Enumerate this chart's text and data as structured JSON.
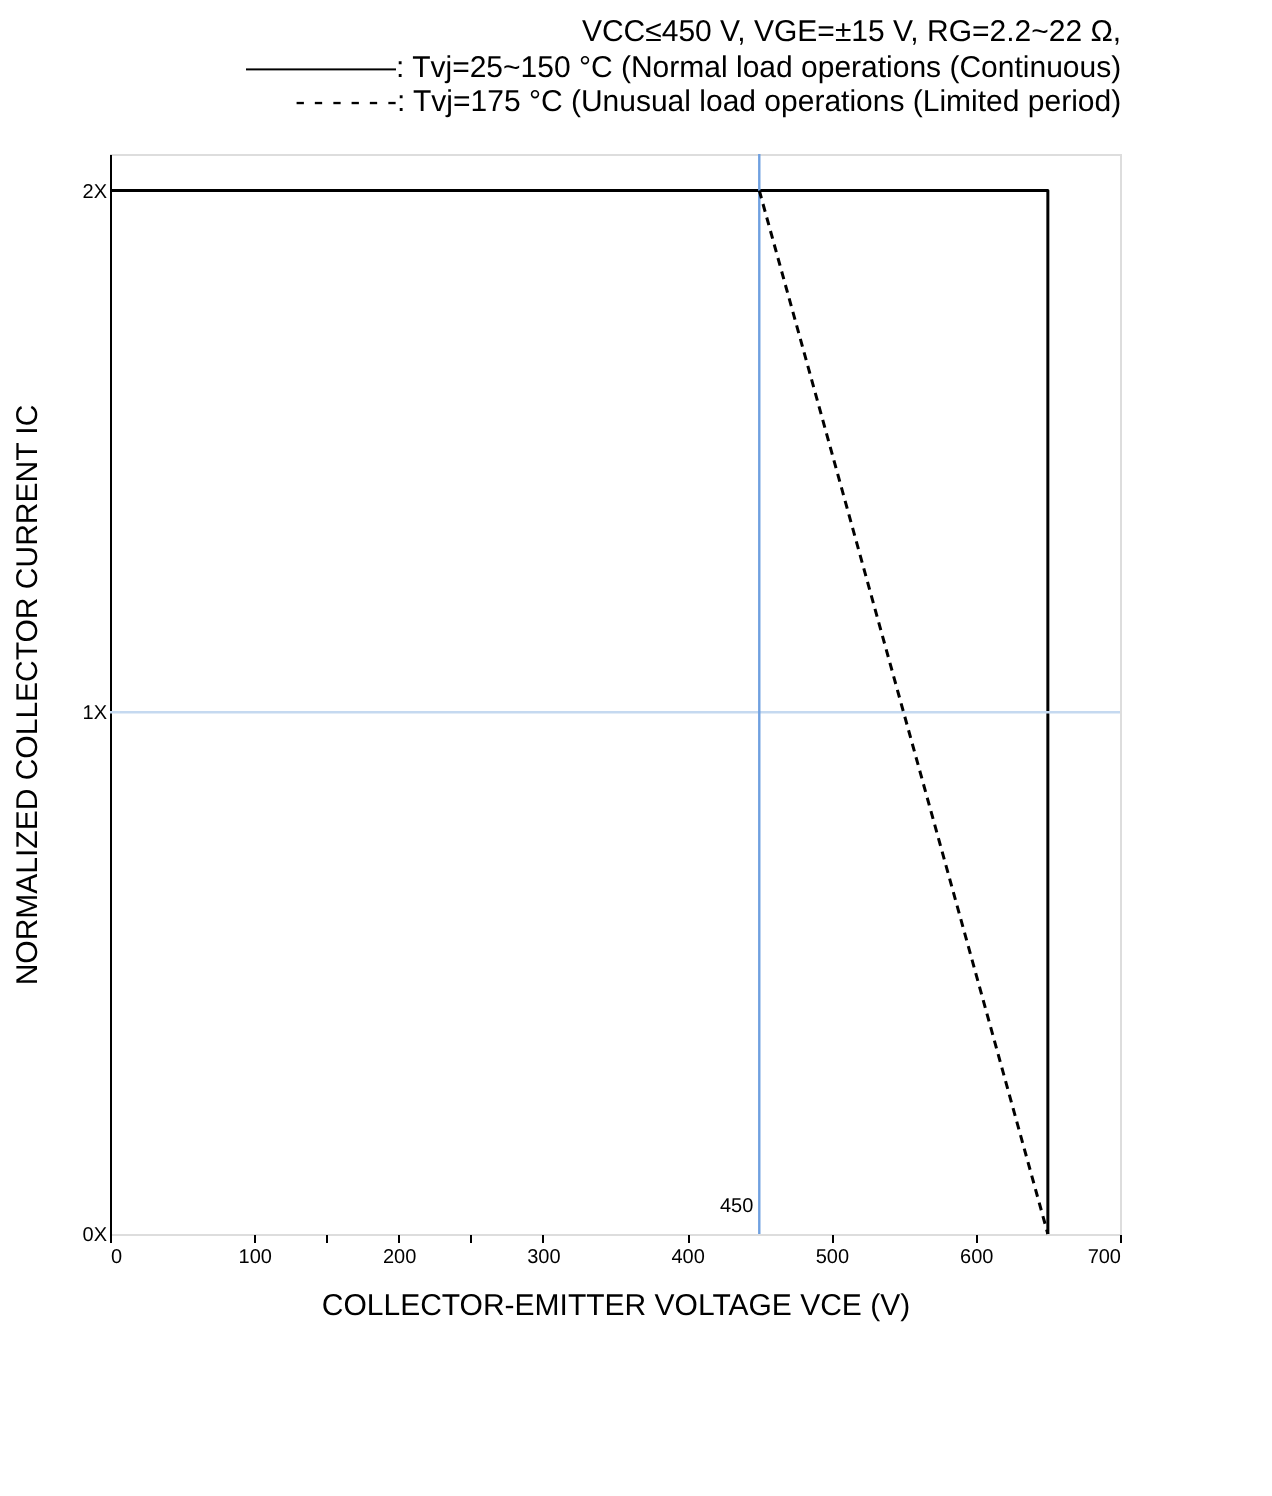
{
  "chart_data": {
    "type": "line",
    "title": "VCC≤450 V, VGE=±15 V, RG=2.2~22 Ω,",
    "subtitle": [
      "―――――: Tvj=25~150 °C (Normal load operations (Continuous)",
      "- - - - - -: Tvj=175 °C (Unusual load operations (Limited period)"
    ],
    "xlabel": "COLLECTOR-EMITTER VOLTAGE    VCE    (V)",
    "ylabel": "NORMALIZED COLLECTOR CURRENT    IC",
    "series": [
      {
        "color": "#000000",
        "line_style": "solid",
        "x": [
          0,
          650,
          650
        ],
        "values": [
          2,
          2,
          0
        ]
      },
      {
        "color": "#000000",
        "line_style": "dashed",
        "x": [
          450,
          650
        ],
        "values": [
          2,
          0
        ]
      }
    ],
    "xlim": [
      0,
      700
    ],
    "xticks": [
      0,
      100,
      {
        "value": 150,
        "label": null
      },
      200,
      {
        "value": 250,
        "label": null
      },
      300,
      400,
      500,
      600,
      700
    ],
    "ylim": [
      0,
      2.07
    ],
    "yticks": [
      {
        "value": 0,
        "label": "0X"
      },
      {
        "value": 1,
        "label": "1X"
      },
      {
        "value": 2,
        "label": "2X"
      }
    ],
    "ref_lines": [
      {
        "axis": "x",
        "value": 450,
        "label": "450",
        "color": "#6fa0e0"
      },
      {
        "axis": "y",
        "value": 1,
        "label": null,
        "color": "#c5d9f0"
      }
    ],
    "grid": false
  }
}
